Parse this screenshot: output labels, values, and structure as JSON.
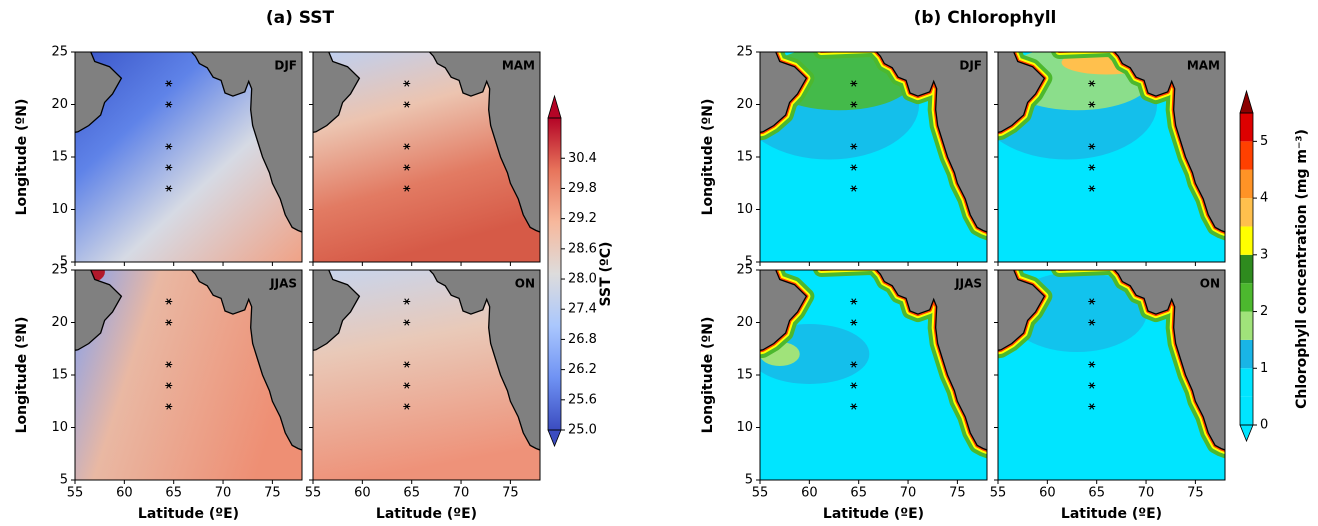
{
  "figures": [
    {
      "title": "(a) SST",
      "x_label": "Latitude (ºE)",
      "y_label": "Longitude (ºN)",
      "xlim": [
        55,
        78
      ],
      "ylim": [
        5,
        25
      ],
      "xticks": [
        55,
        60,
        65,
        70,
        75
      ],
      "yticks": [
        5,
        10,
        15,
        20,
        25
      ],
      "panels": [
        "DJF",
        "MAM",
        "JJAS",
        "ON"
      ],
      "colorbar": {
        "label": "SST (ºC)",
        "lim": [
          25,
          31.2
        ],
        "ticks": [
          {
            "value": 25,
            "label": "25.0"
          },
          25.6,
          26.2,
          26.8,
          27.4,
          {
            "value": 28,
            "label": "28.0"
          },
          28.6,
          29.2,
          29.8,
          30.4
        ],
        "colors": [
          "#3b4cc0",
          "#6f92f3",
          "#aac7fd",
          "#dddcdc",
          "#f7b89c",
          "#e7745b",
          "#b40426"
        ],
        "under": "#3b4cc0",
        "over": "#b40426",
        "discrete": false
      }
    },
    {
      "title": "(b) Chlorophyll",
      "x_label": "Latitude (ºE)",
      "y_label": "Longitude (ºN)",
      "xlim": [
        55,
        78
      ],
      "ylim": [
        5,
        25
      ],
      "xticks": [
        55,
        60,
        65,
        70,
        75
      ],
      "yticks": [
        5,
        10,
        15,
        20,
        25
      ],
      "panels": [
        "DJF",
        "MAM",
        "JJAS",
        "ON"
      ],
      "colorbar": {
        "label": "Chlorophyll concentration (mg m⁻³)",
        "lim": [
          0,
          5.5
        ],
        "ticks": [
          0,
          1,
          2,
          3,
          4,
          5
        ],
        "colors": [
          "#00e5ff",
          "#00e5ff",
          "#19b5e6",
          "#a0e37a",
          "#4cb82e",
          "#2e8b1e",
          "#ffff00",
          "#ffc04d",
          "#ff9326",
          "#ff4000",
          "#dd0000"
        ],
        "under": "#00e5ff",
        "over": "#8b0000",
        "discrete": true
      }
    }
  ]
}
